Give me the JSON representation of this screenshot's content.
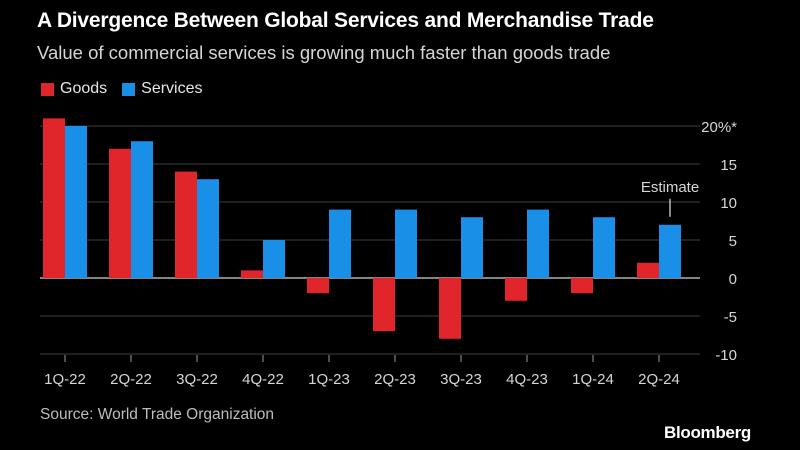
{
  "title": "A Divergence Between Global Services and Merchandise Trade",
  "subtitle": "Value of commercial services is growing much faster than goods trade",
  "legend": [
    {
      "label": "Goods",
      "color": "#e0262a"
    },
    {
      "label": "Services",
      "color": "#1a8fe8"
    }
  ],
  "source": "Source: World Trade Organization",
  "brand": "Bloomberg",
  "chart_data": {
    "type": "bar",
    "categories": [
      "1Q-22",
      "2Q-22",
      "3Q-22",
      "4Q-22",
      "1Q-23",
      "2Q-23",
      "3Q-23",
      "4Q-23",
      "1Q-24",
      "2Q-24"
    ],
    "series": [
      {
        "name": "Goods",
        "color": "#e0262a",
        "values": [
          21,
          17,
          14,
          1,
          -2,
          -7,
          -8,
          -3,
          -2,
          2
        ]
      },
      {
        "name": "Services",
        "color": "#1a8fe8",
        "values": [
          20,
          18,
          13,
          5,
          9,
          9,
          8,
          9,
          8,
          7
        ]
      }
    ],
    "ylim": [
      -10,
      20
    ],
    "yticks": [
      {
        "value": 20,
        "label": "20%*"
      },
      {
        "value": 15,
        "label": "15"
      },
      {
        "value": 10,
        "label": "10"
      },
      {
        "value": 5,
        "label": "5"
      },
      {
        "value": 0,
        "label": "0"
      },
      {
        "value": -5,
        "label": "-5"
      },
      {
        "value": -10,
        "label": "-10"
      }
    ],
    "annotation": {
      "text": "Estimate",
      "category": "2Q-24",
      "series": "Services"
    },
    "grid": true,
    "legend_position": "top-left"
  }
}
